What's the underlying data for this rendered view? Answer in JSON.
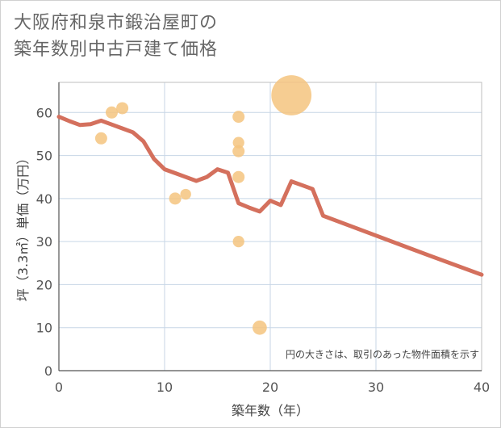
{
  "page": {
    "title": "大阪府和泉市鍛治屋町の\n築年数別中古戸建て価格",
    "note": "円の大きさは、取引のあった物件面積を示す"
  },
  "colors": {
    "line": "#d4705d",
    "bubble": "#f5c47f",
    "grid": "#c7d6e6",
    "axis": "#555555"
  },
  "chart_data": {
    "type": "scatter",
    "title": "大阪府和泉市鍛治屋町の築年数別中古戸建て価格",
    "xlabel": "築年数（年）",
    "ylabel": "坪（3.3㎡）単価（万円）",
    "xlim": [
      0,
      40
    ],
    "ylim": [
      0,
      67
    ],
    "xticks": [
      0,
      10,
      20,
      30,
      40
    ],
    "yticks": [
      0,
      10,
      20,
      30,
      40,
      50,
      60
    ],
    "grid": true,
    "series": [
      {
        "name": "trend",
        "kind": "line",
        "points": [
          [
            0,
            59
          ],
          [
            1,
            58
          ],
          [
            2,
            57.1
          ],
          [
            3,
            57.3
          ],
          [
            4,
            58.1
          ],
          [
            5,
            57.2
          ],
          [
            6,
            56.3
          ],
          [
            7,
            55.4
          ],
          [
            8,
            53.3
          ],
          [
            9,
            49.2
          ],
          [
            10,
            46.8
          ],
          [
            11,
            45.9
          ],
          [
            12,
            45.0
          ],
          [
            13,
            44.1
          ],
          [
            14,
            45.0
          ],
          [
            15,
            46.8
          ],
          [
            16,
            46.0
          ],
          [
            17,
            38.9
          ],
          [
            18,
            37.9
          ],
          [
            19,
            37.0
          ],
          [
            20,
            39.5
          ],
          [
            21,
            38.5
          ],
          [
            22,
            44.0
          ],
          [
            23,
            43.1
          ],
          [
            24,
            42.2
          ],
          [
            25,
            36.0
          ],
          [
            30,
            31.4
          ],
          [
            35,
            26.8
          ],
          [
            40,
            22.3
          ]
        ]
      },
      {
        "name": "transactions",
        "kind": "bubble",
        "points": [
          {
            "x": 4,
            "y": 54,
            "size": 1
          },
          {
            "x": 5,
            "y": 60,
            "size": 1
          },
          {
            "x": 6,
            "y": 61,
            "size": 1
          },
          {
            "x": 11,
            "y": 40,
            "size": 1
          },
          {
            "x": 12,
            "y": 41,
            "size": 0.8
          },
          {
            "x": 17,
            "y": 59,
            "size": 1
          },
          {
            "x": 17,
            "y": 53,
            "size": 0.9
          },
          {
            "x": 17,
            "y": 51,
            "size": 1
          },
          {
            "x": 17,
            "y": 45,
            "size": 1
          },
          {
            "x": 17,
            "y": 30,
            "size": 0.9
          },
          {
            "x": 19,
            "y": 10,
            "size": 1.4
          },
          {
            "x": 22,
            "y": 64,
            "size": 11
          }
        ]
      }
    ],
    "annotation": "円の大きさは、取引のあった物件面積を示す"
  }
}
